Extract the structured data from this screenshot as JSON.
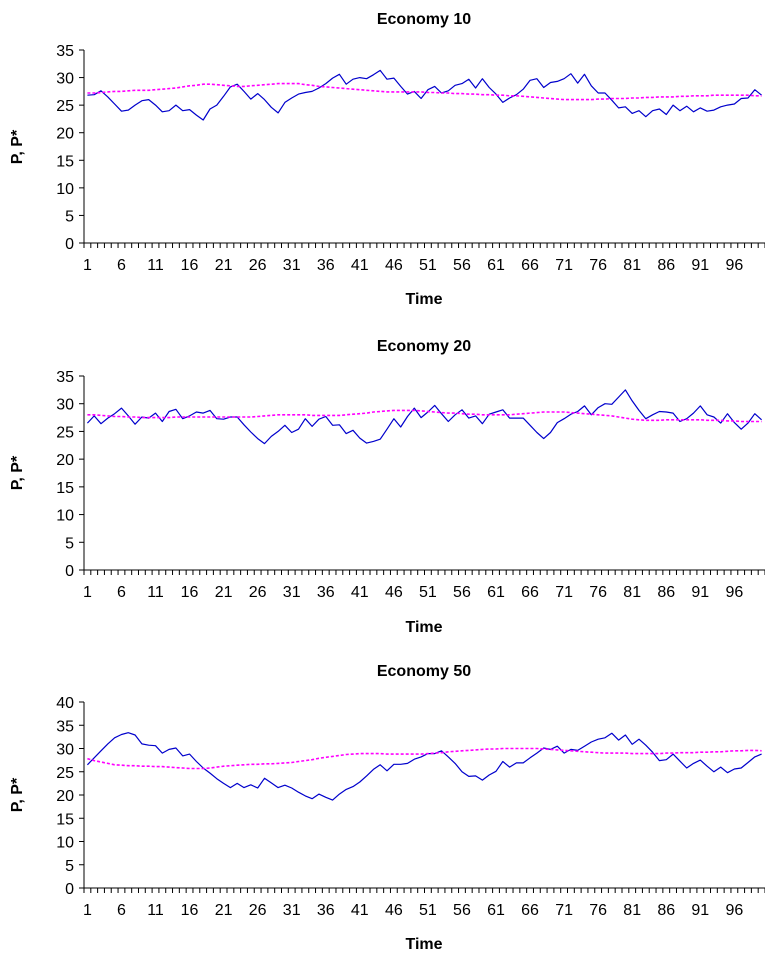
{
  "chart_data": [
    {
      "type": "line",
      "title": "Economy 10",
      "xlabel": "Time",
      "ylabel": "P, P*",
      "ylim": [
        0,
        35
      ],
      "yticks": [
        0,
        5,
        10,
        15,
        20,
        25,
        30,
        35
      ],
      "xlim": [
        1,
        100
      ],
      "xtick_labels": [
        1,
        6,
        11,
        16,
        21,
        26,
        31,
        36,
        41,
        46,
        51,
        56,
        61,
        66,
        71,
        76,
        81,
        86,
        91,
        96
      ],
      "grid": false,
      "legend": "none",
      "series": [
        {
          "style": "solid",
          "color": "#0000cc",
          "values": [
            26.8,
            26.9,
            27.6,
            26.5,
            25.2,
            23.9,
            24.1,
            25.0,
            25.8,
            26.0,
            25.0,
            23.8,
            24.0,
            25.0,
            24.0,
            24.2,
            23.2,
            22.3,
            24.3,
            25.0,
            26.6,
            28.3,
            28.8,
            27.5,
            26.1,
            27.1,
            26.0,
            24.6,
            23.6,
            25.5,
            26.3,
            27.0,
            27.3,
            27.5,
            28.1,
            28.9,
            29.9,
            30.6,
            28.8,
            29.7,
            30.0,
            29.8,
            30.5,
            31.3,
            29.7,
            29.9,
            28.4,
            27.0,
            27.5,
            26.2,
            27.8,
            28.4,
            27.2,
            27.6,
            28.6,
            28.9,
            29.7,
            28.1,
            29.8,
            28.2,
            27.0,
            25.5,
            26.3,
            26.9,
            27.9,
            29.5,
            29.8,
            28.2,
            29.1,
            29.3,
            29.8,
            30.7,
            29.0,
            30.6,
            28.5,
            27.2,
            27.2,
            25.9,
            24.5,
            24.7,
            23.5,
            24.0,
            22.9,
            24.0,
            24.3,
            23.3,
            25.0,
            24.0,
            24.8,
            23.8,
            24.5,
            23.9,
            24.1,
            24.7,
            25.0,
            25.2,
            26.2,
            26.3,
            27.8,
            26.8
          ]
        },
        {
          "style": "dashed",
          "color": "#ff00ff",
          "values": [
            27.2,
            27.2,
            27.3,
            27.4,
            27.5,
            27.5,
            27.6,
            27.7,
            27.7,
            27.7,
            27.8,
            27.9,
            28.0,
            28.1,
            28.3,
            28.5,
            28.6,
            28.8,
            28.8,
            28.7,
            28.6,
            28.5,
            28.4,
            28.4,
            28.5,
            28.6,
            28.7,
            28.8,
            28.9,
            28.9,
            28.9,
            28.9,
            28.7,
            28.6,
            28.4,
            28.3,
            28.2,
            28.1,
            28.0,
            27.9,
            27.8,
            27.7,
            27.6,
            27.5,
            27.4,
            27.4,
            27.4,
            27.4,
            27.4,
            27.4,
            27.3,
            27.3,
            27.2,
            27.2,
            27.1,
            27.1,
            27.0,
            27.0,
            26.9,
            26.9,
            26.8,
            26.8,
            26.7,
            26.7,
            26.6,
            26.5,
            26.4,
            26.3,
            26.2,
            26.1,
            26.0,
            26.0,
            26.0,
            26.0,
            26.0,
            26.1,
            26.1,
            26.2,
            26.2,
            26.2,
            26.3,
            26.3,
            26.4,
            26.4,
            26.5,
            26.5,
            26.5,
            26.6,
            26.6,
            26.7,
            26.7,
            26.7,
            26.8,
            26.8,
            26.8,
            26.8,
            26.8,
            26.8,
            26.7,
            26.7
          ]
        }
      ]
    },
    {
      "type": "line",
      "title": "Economy 20",
      "xlabel": "Time",
      "ylabel": "P, P*",
      "ylim": [
        0,
        35
      ],
      "yticks": [
        0,
        5,
        10,
        15,
        20,
        25,
        30,
        35
      ],
      "xlim": [
        1,
        100
      ],
      "xtick_labels": [
        1,
        6,
        11,
        16,
        21,
        26,
        31,
        36,
        41,
        46,
        51,
        56,
        61,
        66,
        71,
        76,
        81,
        86,
        91,
        96
      ],
      "grid": false,
      "legend": "none",
      "series": [
        {
          "style": "solid",
          "color": "#0000cc",
          "values": [
            26.5,
            27.8,
            26.4,
            27.4,
            28.2,
            29.2,
            27.8,
            26.3,
            27.6,
            27.4,
            28.3,
            26.8,
            28.6,
            29.0,
            27.3,
            27.8,
            28.5,
            28.3,
            28.8,
            27.3,
            27.2,
            27.6,
            27.6,
            26.2,
            24.9,
            23.7,
            22.8,
            24.1,
            25.0,
            26.1,
            24.8,
            25.4,
            27.3,
            25.9,
            27.2,
            27.7,
            26.1,
            26.2,
            24.6,
            25.2,
            23.8,
            22.9,
            23.2,
            23.6,
            25.4,
            27.3,
            25.8,
            27.7,
            29.2,
            27.5,
            28.5,
            29.7,
            28.2,
            26.8,
            28.0,
            28.9,
            27.4,
            27.8,
            26.4,
            28.1,
            28.5,
            28.9,
            27.4,
            27.4,
            27.4,
            26.1,
            24.8,
            23.7,
            24.8,
            26.6,
            27.3,
            28.1,
            28.6,
            29.6,
            28.0,
            29.3,
            30.0,
            29.9,
            31.2,
            32.5,
            30.5,
            28.8,
            27.3,
            28.0,
            28.6,
            28.5,
            28.3,
            26.8,
            27.3,
            28.3,
            29.6,
            28.0,
            27.6,
            26.5,
            28.2,
            26.6,
            25.4,
            26.5,
            28.2,
            27.1
          ]
        },
        {
          "style": "dashed",
          "color": "#ff00ff",
          "values": [
            28.0,
            28.0,
            27.9,
            27.8,
            27.7,
            27.7,
            27.6,
            27.6,
            27.5,
            27.5,
            27.5,
            27.5,
            27.5,
            27.6,
            27.6,
            27.6,
            27.6,
            27.6,
            27.6,
            27.6,
            27.6,
            27.6,
            27.6,
            27.6,
            27.6,
            27.7,
            27.8,
            27.9,
            28.0,
            28.0,
            28.0,
            28.0,
            28.0,
            27.9,
            27.9,
            27.9,
            27.9,
            27.9,
            28.0,
            28.1,
            28.2,
            28.3,
            28.5,
            28.6,
            28.7,
            28.8,
            28.8,
            28.8,
            28.8,
            28.7,
            28.6,
            28.5,
            28.4,
            28.3,
            28.3,
            28.2,
            28.1,
            28.1,
            28.0,
            28.0,
            28.0,
            28.0,
            28.0,
            28.1,
            28.2,
            28.3,
            28.4,
            28.5,
            28.5,
            28.5,
            28.5,
            28.4,
            28.3,
            28.2,
            28.1,
            28.0,
            27.9,
            27.8,
            27.6,
            27.4,
            27.2,
            27.1,
            27.0,
            27.0,
            27.0,
            27.1,
            27.1,
            27.1,
            27.1,
            27.1,
            27.1,
            27.0,
            27.0,
            27.0,
            26.9,
            26.9,
            26.8,
            26.8,
            26.8,
            26.8
          ]
        }
      ]
    },
    {
      "type": "line",
      "title": "Economy 50",
      "xlabel": "Time",
      "ylabel": "P, P*",
      "ylim": [
        0,
        40
      ],
      "yticks": [
        0,
        5,
        10,
        15,
        20,
        25,
        30,
        35,
        40
      ],
      "xlim": [
        1,
        100
      ],
      "xtick_labels": [
        1,
        6,
        11,
        16,
        21,
        26,
        31,
        36,
        41,
        46,
        51,
        56,
        61,
        66,
        71,
        76,
        81,
        86,
        91,
        96
      ],
      "grid": false,
      "legend": "none",
      "series": [
        {
          "style": "solid",
          "color": "#0000cc",
          "values": [
            26.5,
            28.0,
            29.5,
            31.0,
            32.3,
            33.0,
            33.4,
            32.9,
            31.0,
            30.7,
            30.6,
            29.0,
            29.8,
            30.1,
            28.4,
            28.8,
            27.2,
            25.8,
            24.7,
            23.5,
            22.5,
            21.6,
            22.5,
            21.6,
            22.2,
            21.5,
            23.6,
            22.6,
            21.6,
            22.1,
            21.5,
            20.6,
            19.8,
            19.2,
            20.2,
            19.5,
            18.9,
            20.2,
            21.2,
            21.8,
            22.8,
            24.1,
            25.5,
            26.5,
            25.2,
            26.6,
            26.6,
            26.8,
            27.7,
            28.2,
            28.9,
            28.9,
            29.5,
            28.2,
            26.8,
            25.0,
            24.0,
            24.1,
            23.2,
            24.3,
            25.1,
            27.2,
            26.0,
            26.9,
            26.9,
            28.0,
            29.0,
            30.1,
            29.8,
            30.5,
            29.0,
            29.8,
            29.6,
            30.5,
            31.4,
            32.0,
            32.3,
            33.3,
            31.8,
            32.9,
            30.9,
            32.0,
            30.7,
            29.2,
            27.4,
            27.6,
            28.8,
            27.3,
            25.8,
            26.8,
            27.5,
            26.2,
            25.0,
            26.0,
            24.8,
            25.6,
            25.8,
            27.0,
            28.2,
            28.8
          ]
        },
        {
          "style": "dashed",
          "color": "#ff00ff",
          "values": [
            27.8,
            27.4,
            27.1,
            26.8,
            26.5,
            26.4,
            26.3,
            26.3,
            26.2,
            26.2,
            26.1,
            26.1,
            26.0,
            25.9,
            25.8,
            25.7,
            25.7,
            25.7,
            25.8,
            26.0,
            26.2,
            26.3,
            26.4,
            26.5,
            26.6,
            26.6,
            26.7,
            26.7,
            26.8,
            26.9,
            27.0,
            27.2,
            27.4,
            27.6,
            27.9,
            28.1,
            28.3,
            28.5,
            28.7,
            28.8,
            28.9,
            28.9,
            28.9,
            28.9,
            28.8,
            28.8,
            28.8,
            28.8,
            28.8,
            28.8,
            28.9,
            29.0,
            29.1,
            29.3,
            29.4,
            29.5,
            29.6,
            29.7,
            29.8,
            29.9,
            29.9,
            30.0,
            30.0,
            30.0,
            30.0,
            30.0,
            30.0,
            29.9,
            29.8,
            29.7,
            29.6,
            29.5,
            29.4,
            29.3,
            29.2,
            29.1,
            29.0,
            29.0,
            29.0,
            29.0,
            28.9,
            28.9,
            28.9,
            28.9,
            28.9,
            29.0,
            29.0,
            29.1,
            29.1,
            29.1,
            29.2,
            29.2,
            29.3,
            29.3,
            29.4,
            29.5,
            29.5,
            29.6,
            29.6,
            29.5
          ]
        }
      ]
    }
  ]
}
